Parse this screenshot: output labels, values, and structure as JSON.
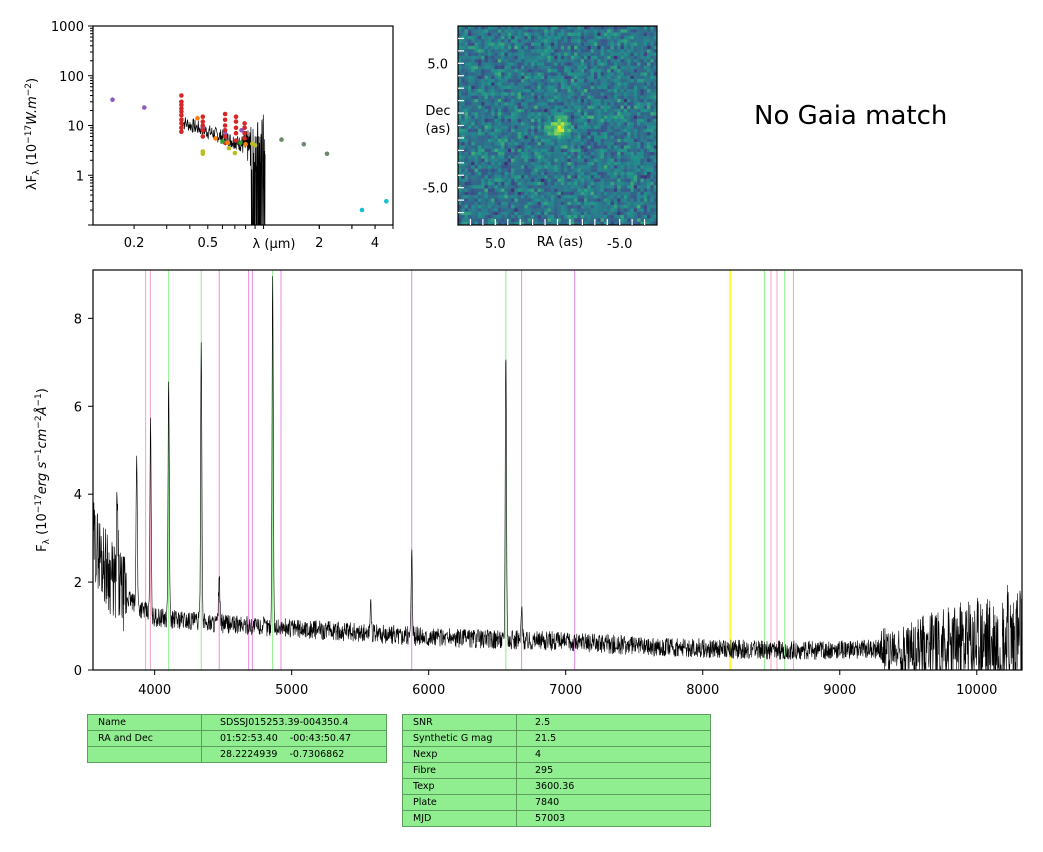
{
  "chart_data": [
    {
      "type": "scatter",
      "xlabel": "$\\lambda$ ($\\mu$m)",
      "ylabel": "$\\lambda F_\\lambda$ ($10^{-17} W.m^{-2}$)",
      "xscale": "log",
      "yscale": "log",
      "xlim": [
        0.12,
        5.0
      ],
      "ylim": [
        0.1,
        1000
      ],
      "xticks": [
        0.2,
        0.5,
        2,
        4
      ],
      "xtick_labels": [
        "0.2",
        "0.5",
        "2",
        "4"
      ],
      "yticks": [
        1,
        10,
        100,
        1000
      ],
      "ytick_labels": [
        "1",
        "10",
        "100",
        "1000"
      ],
      "series": [
        {
          "color": "#8c5bbf",
          "points": [
            [
              0.153,
              33
            ],
            [
              0.227,
              23
            ],
            [
              0.47,
              9
            ],
            [
              0.62,
              7
            ],
            [
              0.76,
              8
            ]
          ]
        },
        {
          "color": "#d62728",
          "points": [
            [
              0.36,
              40
            ],
            [
              0.36,
              30
            ],
            [
              0.36,
              26
            ],
            [
              0.36,
              22
            ],
            [
              0.36,
              19
            ],
            [
              0.36,
              16
            ],
            [
              0.36,
              13
            ],
            [
              0.36,
              11
            ],
            [
              0.36,
              9
            ],
            [
              0.36,
              7.5
            ],
            [
              0.47,
              15
            ],
            [
              0.47,
              12
            ],
            [
              0.47,
              10
            ],
            [
              0.47,
              8
            ],
            [
              0.47,
              6
            ],
            [
              0.62,
              17
            ],
            [
              0.62,
              13
            ],
            [
              0.62,
              10
            ],
            [
              0.62,
              8
            ],
            [
              0.62,
              6
            ],
            [
              0.62,
              4.5
            ],
            [
              0.71,
              15
            ],
            [
              0.71,
              12
            ],
            [
              0.71,
              9
            ],
            [
              0.71,
              7
            ],
            [
              0.71,
              5
            ],
            [
              0.79,
              11
            ],
            [
              0.79,
              9
            ],
            [
              0.79,
              7
            ],
            [
              0.79,
              5.5
            ]
          ]
        },
        {
          "color": "#ff7f0e",
          "points": [
            [
              0.44,
              14
            ],
            [
              0.55,
              5.5
            ],
            [
              0.64,
              4.5
            ],
            [
              0.8,
              4.2
            ]
          ]
        },
        {
          "color": "#bcbd22",
          "points": [
            [
              0.47,
              3
            ],
            [
              0.47,
              2.7
            ],
            [
              0.65,
              3.5
            ],
            [
              0.7,
              2.8
            ],
            [
              0.87,
              4.3
            ],
            [
              0.9,
              4
            ]
          ]
        },
        {
          "color": "#2ca02c",
          "points": [
            [
              0.6,
              4.8
            ],
            [
              0.75,
              4.5
            ]
          ]
        },
        {
          "color": "#6a8a6a",
          "points": [
            [
              1.25,
              5.2
            ],
            [
              1.65,
              4.2
            ],
            [
              2.2,
              2.7
            ]
          ]
        },
        {
          "color": "#17becf",
          "points": [
            [
              3.4,
              0.2
            ],
            [
              4.6,
              0.3
            ]
          ]
        }
      ]
    },
    {
      "type": "heatmap",
      "xlabel": "RA (as)",
      "ylabel": "Dec\n(as)",
      "xticks": [
        5.0,
        -5.0
      ],
      "xtick_labels": [
        "5.0",
        "-5.0"
      ],
      "yticks": [
        5.0,
        -5.0
      ],
      "ytick_labels": [
        "5.0",
        "-5.0"
      ],
      "extent": [
        8,
        -8,
        -8,
        8
      ],
      "colormap": [
        "#440154",
        "#3b528b",
        "#21918c",
        "#5ec962",
        "#fde725"
      ],
      "source_center": [
        0,
        0
      ]
    },
    {
      "type": "line",
      "xlabel": "",
      "ylabel": "F$_\\lambda$ ($10^{-17} erg\\ s^{-1} cm^{-2} \\AA^{-1}$)",
      "xlim": [
        3550,
        10330
      ],
      "ylim": [
        0,
        9.1
      ],
      "xticks": [
        4000,
        5000,
        6000,
        7000,
        8000,
        9000,
        10000
      ],
      "xtick_labels": [
        "4000",
        "5000",
        "6000",
        "7000",
        "8000",
        "9000",
        "10000"
      ],
      "yticks": [
        0,
        2,
        4,
        6,
        8
      ],
      "ytick_labels": [
        "0",
        "2",
        "4",
        "6",
        "8"
      ],
      "continuum": [
        [
          3550,
          3.0
        ],
        [
          3700,
          2.0
        ],
        [
          3850,
          1.5
        ],
        [
          4000,
          1.2
        ],
        [
          4500,
          1.05
        ],
        [
          5000,
          0.95
        ],
        [
          5500,
          0.85
        ],
        [
          6000,
          0.75
        ],
        [
          6500,
          0.7
        ],
        [
          7000,
          0.65
        ],
        [
          7500,
          0.55
        ],
        [
          8000,
          0.5
        ],
        [
          8500,
          0.45
        ],
        [
          9000,
          0.45
        ],
        [
          9500,
          0.5
        ],
        [
          10000,
          0.6
        ],
        [
          10330,
          0.7
        ]
      ],
      "emission_lines": [
        {
          "x": 3727,
          "peak": 3.8
        },
        {
          "x": 3869,
          "peak": 5.0
        },
        {
          "x": 3970,
          "peak": 5.6
        },
        {
          "x": 4102,
          "peak": 6.6
        },
        {
          "x": 4340,
          "peak": 7.6
        },
        {
          "x": 4471,
          "peak": 2.2
        },
        {
          "x": 4861,
          "peak": 9.0
        },
        {
          "x": 5577,
          "peak": 1.6
        },
        {
          "x": 5876,
          "peak": 2.8
        },
        {
          "x": 6563,
          "peak": 7.4
        },
        {
          "x": 6678,
          "peak": 1.4
        }
      ],
      "vlines": [
        {
          "x": 3934,
          "color": "#f4a6c0"
        },
        {
          "x": 3969,
          "color": "#f4a6c0"
        },
        {
          "x": 4102,
          "color": "#90ee90"
        },
        {
          "x": 4340,
          "color": "#90ee90"
        },
        {
          "x": 4471,
          "color": "#e98be0"
        },
        {
          "x": 4686,
          "color": "#e98be0"
        },
        {
          "x": 4713,
          "color": "#e98be0"
        },
        {
          "x": 4861,
          "color": "#90ee90"
        },
        {
          "x": 4922,
          "color": "#e98be0"
        },
        {
          "x": 5876,
          "color": "#e98be0"
        },
        {
          "x": 6563,
          "color": "#90ee90"
        },
        {
          "x": 6678,
          "color": "#e98be0"
        },
        {
          "x": 7065,
          "color": "#e98be0"
        },
        {
          "x": 8200,
          "color": "#ffff33"
        },
        {
          "x": 8450,
          "color": "#90ee90"
        },
        {
          "x": 8498,
          "color": "#f4a6c0"
        },
        {
          "x": 8542,
          "color": "#f4a6c0"
        },
        {
          "x": 8598,
          "color": "#90ee90"
        },
        {
          "x": 8662,
          "color": "#f4a6c0"
        }
      ]
    }
  ],
  "gaia_text": "No Gaia match",
  "table_left": [
    {
      "label": "Name",
      "value": "SDSSJ015253.39-004350.4"
    },
    {
      "label": "RA and Dec",
      "value": "01:52:53.40    -00:43:50.47"
    },
    {
      "label": "",
      "value": "28.2224939    -0.7306862"
    }
  ],
  "table_right": [
    {
      "label": "SNR",
      "value": "2.5"
    },
    {
      "label": "Synthetic G mag",
      "value": "21.5"
    },
    {
      "label": "Nexp",
      "value": "4"
    },
    {
      "label": "Fibre",
      "value": "295"
    },
    {
      "label": "Texp",
      "value": "3600.36"
    },
    {
      "label": "Plate",
      "value": "7840"
    },
    {
      "label": "MJD",
      "value": "57003"
    }
  ]
}
